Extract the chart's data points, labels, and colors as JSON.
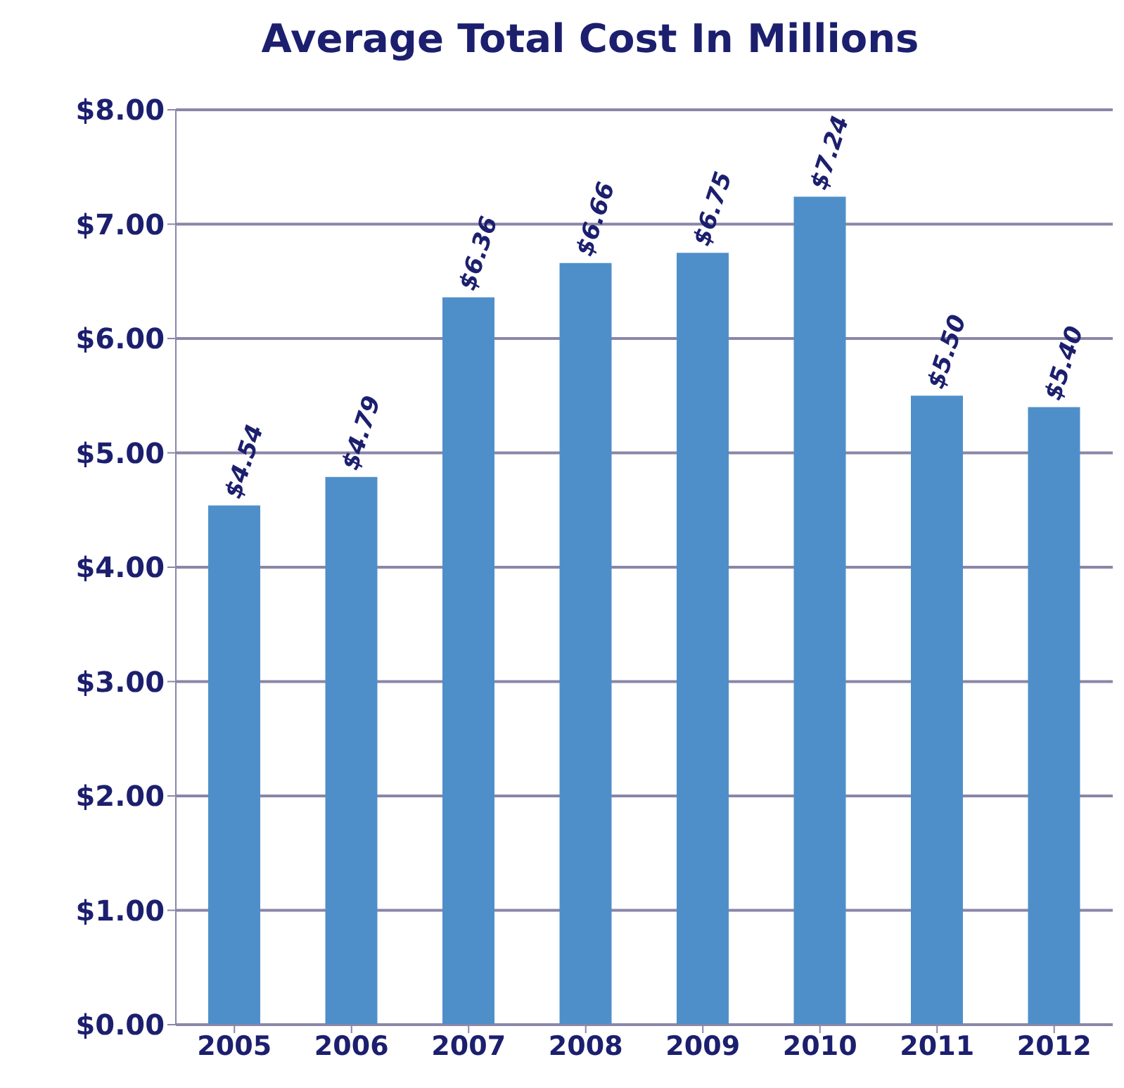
{
  "chart_data": {
    "type": "bar",
    "title": "Average Total Cost In Millions",
    "categories": [
      "2005",
      "2006",
      "2007",
      "2008",
      "2009",
      "2010",
      "2011",
      "2012"
    ],
    "values": [
      4.54,
      4.79,
      6.36,
      6.66,
      6.75,
      7.24,
      5.5,
      5.4
    ],
    "value_labels": [
      "$4.54",
      "$4.79",
      "$6.36",
      "$6.66",
      "$6.75",
      "$7.24",
      "$5.50",
      "$5.40"
    ],
    "color": "#4f8fc9",
    "ylim": [
      0,
      8
    ],
    "yticks": [
      {
        "value": 0,
        "label": "$0.00"
      },
      {
        "value": 1,
        "label": "$1.00"
      },
      {
        "value": 2,
        "label": "$2.00"
      },
      {
        "value": 3,
        "label": "$3.00"
      },
      {
        "value": 4,
        "label": "$4.00"
      },
      {
        "value": 5,
        "label": "$5.00"
      },
      {
        "value": 6,
        "label": "$6.00"
      },
      {
        "value": 7,
        "label": "$7.00"
      },
      {
        "value": 8,
        "label": "$8.00"
      }
    ],
    "grid": "y"
  }
}
